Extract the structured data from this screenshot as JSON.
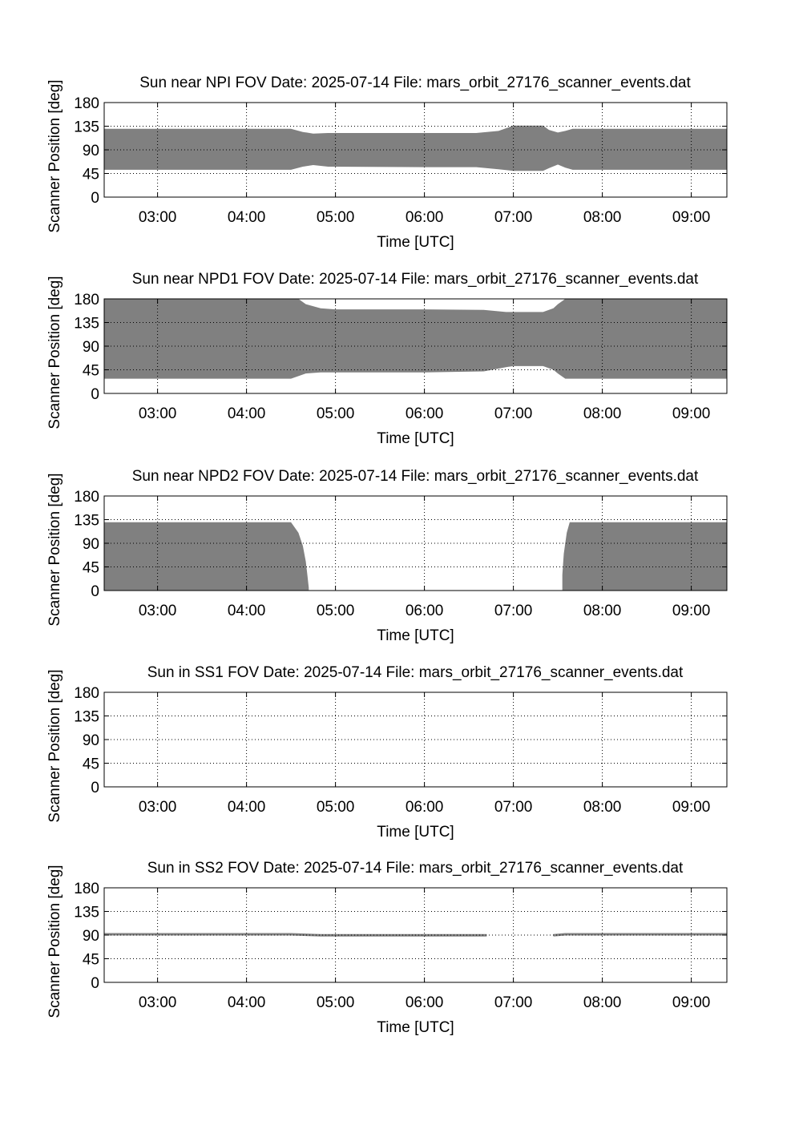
{
  "figure": {
    "colors": {
      "fill": "#808080",
      "axis": "#000000",
      "grid": "#000000",
      "background": "#ffffff"
    }
  },
  "chart_data": [
    {
      "type": "area",
      "title": "Sun near NPI FOV   Date: 2025-07-14   File: mars_orbit_27176_scanner_events.dat",
      "xlabel": "Time [UTC]",
      "ylabel": "Scanner Position [deg]",
      "xlim": [
        "02:24",
        "09:24"
      ],
      "ylim": [
        0,
        180
      ],
      "yticks": [
        0,
        45,
        90,
        135,
        180
      ],
      "xticks": [
        "03:00",
        "04:00",
        "05:00",
        "06:00",
        "07:00",
        "08:00",
        "09:00"
      ],
      "grid": true,
      "band": {
        "x": [
          "02:24",
          "04:30",
          "04:38",
          "04:45",
          "04:55",
          "06:00",
          "06:35",
          "06:50",
          "07:00",
          "07:20",
          "07:24",
          "07:30",
          "07:35",
          "07:40",
          "08:00",
          "09:24"
        ],
        "upper": [
          130,
          130,
          124,
          121,
          122,
          122,
          122,
          126,
          136,
          136,
          128,
          123,
          126,
          130,
          130,
          130
        ],
        "lower": [
          52,
          52,
          58,
          61,
          58,
          57,
          57,
          53,
          50,
          50,
          55,
          62,
          56,
          52,
          52,
          52
        ]
      }
    },
    {
      "type": "area",
      "title": "Sun near NPD1 FOV   Date: 2025-07-14   File: mars_orbit_27176_scanner_events.dat",
      "xlabel": "Time [UTC]",
      "ylabel": "Scanner Position [deg]",
      "xlim": [
        "02:24",
        "09:24"
      ],
      "ylim": [
        0,
        180
      ],
      "yticks": [
        0,
        45,
        90,
        135,
        180
      ],
      "xticks": [
        "03:00",
        "04:00",
        "05:00",
        "06:00",
        "07:00",
        "08:00",
        "09:00"
      ],
      "grid": true,
      "band": {
        "x": [
          "02:24",
          "04:30",
          "04:35",
          "04:40",
          "04:50",
          "05:00",
          "06:00",
          "06:40",
          "06:55",
          "07:00",
          "07:20",
          "07:27",
          "07:30",
          "07:35",
          "08:00",
          "09:24"
        ],
        "upper": [
          180,
          180,
          180,
          170,
          162,
          160,
          160,
          159,
          155,
          155,
          155,
          162,
          170,
          180,
          180,
          180
        ],
        "lower": [
          28,
          28,
          33,
          38,
          40,
          40,
          40,
          42,
          50,
          52,
          52,
          45,
          38,
          28,
          28,
          28
        ]
      }
    },
    {
      "type": "area",
      "title": "Sun near NPD2 FOV   Date: 2025-07-14   File: mars_orbit_27176_scanner_events.dat",
      "xlabel": "Time [UTC]",
      "ylabel": "Scanner Position [deg]",
      "xlim": [
        "02:24",
        "09:24"
      ],
      "ylim": [
        0,
        180
      ],
      "yticks": [
        0,
        45,
        90,
        135,
        180
      ],
      "xticks": [
        "03:00",
        "04:00",
        "05:00",
        "06:00",
        "07:00",
        "08:00",
        "09:00"
      ],
      "grid": true,
      "band": {
        "x": [
          "02:24",
          "04:30",
          "04:35",
          "04:38",
          "04:40",
          "04:41",
          "04:42",
          "04:42",
          "07:32",
          "07:33",
          "07:33",
          "07:34",
          "07:36",
          "07:38",
          "09:24"
        ],
        "upper": [
          130,
          130,
          110,
          85,
          55,
          30,
          5,
          0,
          0,
          0,
          30,
          70,
          110,
          130,
          130
        ],
        "lower": [
          0,
          0,
          0,
          0,
          0,
          0,
          0,
          0,
          0,
          0,
          0,
          0,
          0,
          0,
          0
        ]
      }
    },
    {
      "type": "area",
      "title": "Sun in SS1 FOV   Date: 2025-07-14   File: mars_orbit_27176_scanner_events.dat",
      "xlabel": "Time [UTC]",
      "ylabel": "Scanner Position [deg]",
      "xlim": [
        "02:24",
        "09:24"
      ],
      "ylim": [
        0,
        180
      ],
      "yticks": [
        0,
        45,
        90,
        135,
        180
      ],
      "xticks": [
        "03:00",
        "04:00",
        "05:00",
        "06:00",
        "07:00",
        "08:00",
        "09:00"
      ],
      "grid": true,
      "band": {
        "x": [],
        "upper": [],
        "lower": []
      }
    },
    {
      "type": "line",
      "title": "Sun in SS2 FOV   Date: 2025-07-14   File: mars_orbit_27176_scanner_events.dat",
      "xlabel": "Time [UTC]",
      "ylabel": "Scanner Position [deg]",
      "xlim": [
        "02:24",
        "09:24"
      ],
      "ylim": [
        0,
        180
      ],
      "yticks": [
        0,
        45,
        90,
        135,
        180
      ],
      "xticks": [
        "03:00",
        "04:00",
        "05:00",
        "06:00",
        "07:00",
        "08:00",
        "09:00"
      ],
      "grid": true,
      "segments": [
        {
          "x": [
            "02:24",
            "04:30",
            "04:50",
            "06:42"
          ],
          "y": [
            91.5,
            91.5,
            89.5,
            89.5
          ]
        },
        {
          "x": [
            "07:27",
            "07:35",
            "08:00",
            "09:24"
          ],
          "y": [
            89.5,
            91.5,
            91.5,
            91.5
          ]
        }
      ]
    }
  ]
}
